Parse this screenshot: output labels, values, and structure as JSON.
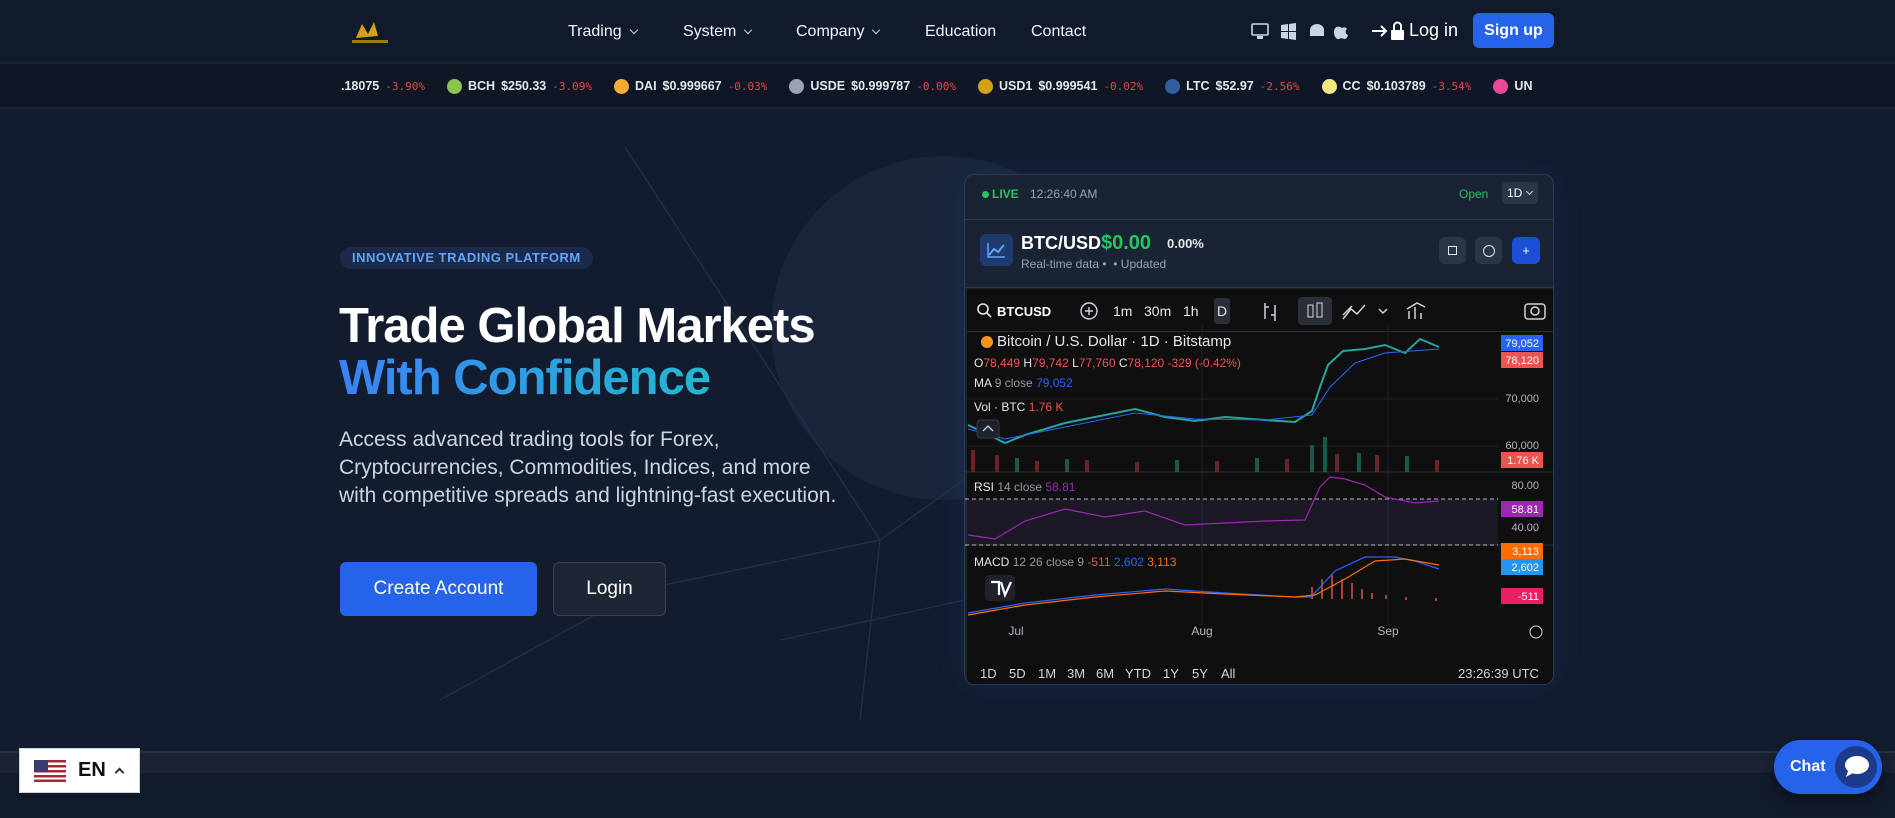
{
  "nav": {
    "menu": [
      "Trading",
      "System",
      "Company",
      "Education",
      "Contact"
    ],
    "dropdown": [
      true,
      true,
      true,
      false,
      false
    ],
    "login": "Log in",
    "signup": "Sign up"
  },
  "ticker": [
    {
      "symbol": null,
      "price": ".18075",
      "change": "-3.90%",
      "color": null
    },
    {
      "symbol": "BCH",
      "price": "$250.33",
      "change": "-3.09%",
      "color": "#8dc351"
    },
    {
      "symbol": "DAI",
      "price": "$0.999667",
      "change": "-0.03%",
      "color": "#f5ac37"
    },
    {
      "symbol": "USDE",
      "price": "$0.999787",
      "change": "-0.00%",
      "color": "#9ca3af"
    },
    {
      "symbol": "USD1",
      "price": "$0.999541",
      "change": "-0.02%",
      "color": "#d4a017"
    },
    {
      "symbol": "LTC",
      "price": "$52.97",
      "change": "-2.56%",
      "color": "#345d9d"
    },
    {
      "symbol": "CC",
      "price": "$0.103789",
      "change": "-3.54%",
      "color": "#f3e97a"
    },
    {
      "symbol": "UN",
      "price": null,
      "change": null,
      "color": "#ec4899"
    }
  ],
  "hero": {
    "badge": "INNOVATIVE TRADING PLATFORM",
    "title_line1": "Trade Global Markets",
    "title_line2": "With Confidence",
    "description": "Access advanced trading tools for Forex, Cryptocurrencies, Commodities, Indices, and more with competitive spreads and lightning-fast execution.",
    "primary_button": "Create Account",
    "secondary_button": "Login"
  },
  "widget": {
    "status": "LIVE",
    "time": "12:26:40 AM",
    "market": "Open",
    "interval": "1D",
    "pair": "BTC/USD",
    "price": "$0.00",
    "change": "0.00%",
    "sub_realtime": "Real-time data",
    "sub_updated": "Updated",
    "toolbar": {
      "symbol": "BTCUSD",
      "intervals": [
        "1m",
        "30m",
        "1h",
        "D"
      ]
    },
    "chart": {
      "title": "Bitcoin / U.S. Dollar · 1D · Bitstamp",
      "ohlc": [
        [
          "O",
          "78,449"
        ],
        [
          "H",
          "79,742"
        ],
        [
          "L",
          "77,760"
        ],
        [
          "C",
          "78,120"
        ]
      ],
      "ohlc_change": "-329 (-0.42%)",
      "ma": {
        "name": "MA",
        "params": "9 close",
        "value": "79,052"
      },
      "vol": {
        "name": "Vol · BTC",
        "value": "1.76 K"
      },
      "price_axis": [
        "70,000",
        "60,000"
      ],
      "price_tags": {
        "ma": "79,052",
        "close": "78,120",
        "vol": "1.76 K"
      },
      "rsi": {
        "name": "RSI",
        "params": "14 close",
        "value": "58.81",
        "axis": [
          "80.00",
          "40.00"
        ]
      },
      "macd": {
        "name": "MACD",
        "params": "12 26 close 9",
        "hist": "-511",
        "macd": "2,602",
        "signal": "3,113"
      },
      "months": [
        "Jul",
        "Aug",
        "Sep"
      ]
    },
    "ranges": [
      "1D",
      "5D",
      "1M",
      "3M",
      "6M",
      "YTD",
      "1Y",
      "5Y",
      "All"
    ],
    "clock": "23:26:39 UTC"
  },
  "chat": "Chat",
  "language": "EN"
}
